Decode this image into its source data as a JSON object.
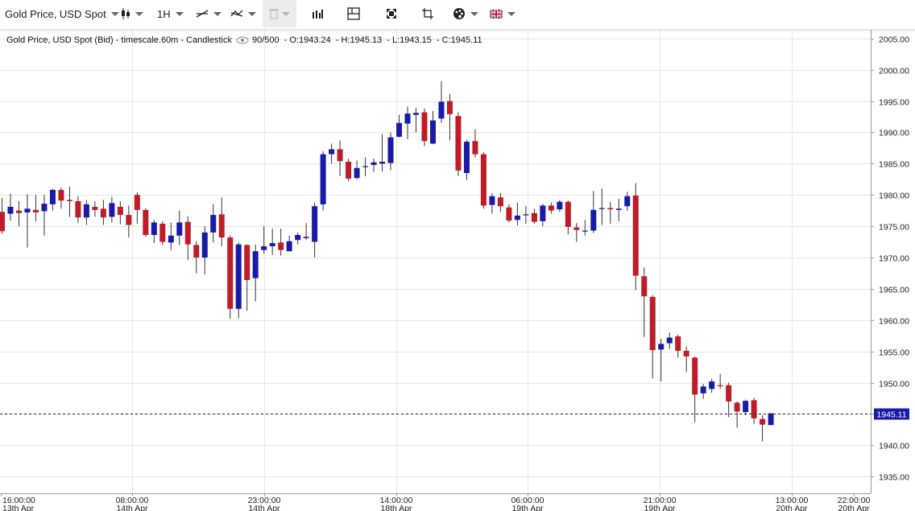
{
  "toolbar": {
    "instrument": "Gold Price, USD Spot",
    "timeframe": "1H",
    "icons": [
      "candlestick-icon",
      "line-tool-icon",
      "trend-tool-icon",
      "trash-icon",
      "volume-bars-icon",
      "layout-icon",
      "fullscreen-icon",
      "crop-icon",
      "palette-icon",
      "uk-flag-icon"
    ]
  },
  "legend": {
    "title": "Gold Price, USD Spot (Bid) - timescale.60m - Candlestick",
    "count": "90/500",
    "open": "O:1943.24",
    "high": "H:1945.13",
    "low": "L:1943.15",
    "close": "C:1945.11"
  },
  "colors": {
    "up": "#1a1aa8",
    "down": "#c01c28",
    "grid": "#e6e6e6",
    "price_tag": "#1a1aa8"
  },
  "current_price": "1945.11",
  "chart_data": {
    "type": "candlestick",
    "title": "Gold Price, USD Spot (Bid) - timescale.60m - Candlestick",
    "ylim": [
      1934,
      2006
    ],
    "y_ticks": [
      "2005.00",
      "2000.00",
      "1995.00",
      "1990.00",
      "1985.00",
      "1980.00",
      "1975.00",
      "1970.00",
      "1965.00",
      "1960.00",
      "1955.00",
      "1950.00",
      "1945.00",
      "1940.00",
      "1935.00"
    ],
    "x_ticks": [
      {
        "time": "16:00:00",
        "date": "13th Apr"
      },
      {
        "time": "08:00:00",
        "date": "14th Apr"
      },
      {
        "time": "23:00:00",
        "date": "14th Apr"
      },
      {
        "time": "14:00:00",
        "date": "18th Apr"
      },
      {
        "time": "06:00:00",
        "date": "19th Apr"
      },
      {
        "time": "21:00:00",
        "date": "19th Apr"
      },
      {
        "time": "13:00:00",
        "date": "20th Apr"
      },
      {
        "time": "22:00:00",
        "date": "20th Apr"
      }
    ],
    "current_price": 1945.11,
    "candles": [
      [
        1977.3,
        1974.2,
        1979.5,
        1973.8
      ],
      [
        1977.0,
        1978.1,
        1980.2,
        1975.9
      ],
      [
        1977.5,
        1977.1,
        1979.0,
        1975.0
      ],
      [
        1977.2,
        1977.8,
        1980.1,
        1971.6
      ],
      [
        1977.6,
        1977.2,
        1980.0,
        1975.8
      ],
      [
        1977.4,
        1978.6,
        1980.0,
        1973.5
      ],
      [
        1978.5,
        1980.8,
        1981.0,
        1977.5
      ],
      [
        1980.8,
        1979.1,
        1981.2,
        1977.8
      ],
      [
        1979.2,
        1979.0,
        1981.3,
        1976.5
      ],
      [
        1979.0,
        1976.4,
        1979.8,
        1975.5
      ],
      [
        1976.4,
        1978.5,
        1979.2,
        1975.2
      ],
      [
        1978.1,
        1977.6,
        1979.0,
        1976.5
      ],
      [
        1977.8,
        1976.4,
        1979.2,
        1975.2
      ],
      [
        1976.5,
        1978.7,
        1979.7,
        1975.6
      ],
      [
        1978.1,
        1976.8,
        1979.0,
        1975.3
      ],
      [
        1976.8,
        1975.2,
        1978.3,
        1973.2
      ],
      [
        1980.0,
        1977.6,
        1980.4,
        1975.4
      ],
      [
        1977.6,
        1973.6,
        1977.9,
        1973.3
      ],
      [
        1973.6,
        1975.6,
        1976.0,
        1972.3
      ],
      [
        1975.4,
        1972.5,
        1975.8,
        1972.0
      ],
      [
        1972.4,
        1973.5,
        1975.6,
        1971.2
      ],
      [
        1973.5,
        1975.6,
        1977.5,
        1972.0
      ],
      [
        1975.7,
        1972.1,
        1976.6,
        1969.6
      ],
      [
        1972.0,
        1970.0,
        1972.6,
        1967.5
      ],
      [
        1970.0,
        1974.0,
        1975.0,
        1967.3
      ],
      [
        1974.0,
        1976.8,
        1978.5,
        1972.4
      ],
      [
        1976.9,
        1973.2,
        1979.6,
        1971.8
      ],
      [
        1973.2,
        1961.8,
        1973.5,
        1960.2
      ],
      [
        1961.8,
        1972.1,
        1972.4,
        1960.3
      ],
      [
        1972.0,
        1966.4,
        1972.1,
        1961.5
      ],
      [
        1966.7,
        1971.0,
        1972.1,
        1963.0
      ],
      [
        1971.2,
        1971.8,
        1975.0,
        1970.6
      ],
      [
        1971.8,
        1972.3,
        1974.6,
        1970.4
      ],
      [
        1972.4,
        1971.2,
        1974.6,
        1970.3
      ],
      [
        1971.0,
        1972.6,
        1973.5,
        1971.0
      ],
      [
        1972.8,
        1973.6,
        1974.0,
        1972.1
      ],
      [
        1973.1,
        1973.3,
        1975.5,
        1972.8
      ],
      [
        1972.5,
        1978.2,
        1978.8,
        1970.0
      ],
      [
        1978.5,
        1986.5,
        1987.0,
        1977.5
      ],
      [
        1986.5,
        1987.3,
        1988.2,
        1985.0
      ],
      [
        1987.3,
        1985.4,
        1988.7,
        1983.0
      ],
      [
        1985.3,
        1982.6,
        1985.8,
        1982.2
      ],
      [
        1982.7,
        1984.3,
        1985.5,
        1982.5
      ],
      [
        1984.6,
        1984.6,
        1986.0,
        1983.0
      ],
      [
        1984.8,
        1985.2,
        1985.8,
        1983.7
      ],
      [
        1985.0,
        1985.3,
        1989.7,
        1983.8
      ],
      [
        1985.1,
        1989.2,
        1990.0,
        1984.0
      ],
      [
        1989.3,
        1991.5,
        1992.8,
        1989.2
      ],
      [
        1991.4,
        1993.0,
        1994.1,
        1988.9
      ],
      [
        1992.8,
        1993.1,
        1993.9,
        1990.0
      ],
      [
        1993.2,
        1988.6,
        1993.8,
        1987.8
      ],
      [
        1988.2,
        1991.9,
        1993.4,
        1988.1
      ],
      [
        1992.2,
        1994.9,
        1998.2,
        1991.5
      ],
      [
        1995.0,
        1992.9,
        1996.1,
        1988.7
      ],
      [
        1992.6,
        1983.9,
        1993.2,
        1983.0
      ],
      [
        1983.5,
        1988.5,
        1988.8,
        1982.4
      ],
      [
        1988.6,
        1986.5,
        1990.5,
        1986.0
      ],
      [
        1986.5,
        1978.3,
        1986.8,
        1977.8
      ],
      [
        1978.4,
        1979.8,
        1980.3,
        1977.0
      ],
      [
        1979.6,
        1978.2,
        1980.3,
        1977.3
      ],
      [
        1978.0,
        1975.9,
        1978.5,
        1975.6
      ],
      [
        1976.0,
        1976.7,
        1978.8,
        1975.1
      ],
      [
        1976.9,
        1976.9,
        1978.2,
        1975.4
      ],
      [
        1977.1,
        1975.7,
        1977.8,
        1975.4
      ],
      [
        1975.8,
        1978.3,
        1978.6,
        1975.0
      ],
      [
        1978.3,
        1977.5,
        1978.8,
        1977.0
      ],
      [
        1977.7,
        1978.9,
        1979.2,
        1977.3
      ],
      [
        1978.9,
        1974.9,
        1979.1,
        1973.7
      ],
      [
        1974.8,
        1974.4,
        1975.5,
        1972.5
      ],
      [
        1974.3,
        1974.3,
        1976.0,
        1973.5
      ],
      [
        1974.3,
        1977.6,
        1980.6,
        1973.9
      ],
      [
        1977.8,
        1977.9,
        1981.0,
        1975.2
      ],
      [
        1977.9,
        1977.7,
        1978.9,
        1975.4
      ],
      [
        1977.6,
        1977.8,
        1979.4,
        1975.8
      ],
      [
        1978.2,
        1979.8,
        1980.5,
        1977.5
      ],
      [
        1979.9,
        1967.1,
        1981.9,
        1964.8
      ],
      [
        1967.0,
        1963.8,
        1968.4,
        1957.3
      ],
      [
        1963.7,
        1955.2,
        1964.0,
        1950.7
      ],
      [
        1955.3,
        1956.2,
        1957.0,
        1950.2
      ],
      [
        1956.3,
        1957.2,
        1958.0,
        1955.4
      ],
      [
        1957.4,
        1955.1,
        1957.7,
        1954.0
      ],
      [
        1955.1,
        1954.2,
        1955.8,
        1951.7
      ],
      [
        1954.0,
        1948.1,
        1954.2,
        1943.7
      ],
      [
        1948.3,
        1949.4,
        1949.8,
        1947.4
      ],
      [
        1949.0,
        1950.2,
        1950.6,
        1948.4
      ],
      [
        1949.6,
        1949.5,
        1951.4,
        1949.0
      ],
      [
        1949.6,
        1947.0,
        1950.0,
        1944.5
      ],
      [
        1946.8,
        1945.4,
        1947.0,
        1942.8
      ],
      [
        1945.3,
        1947.1,
        1947.3,
        1944.8
      ],
      [
        1947.2,
        1944.3,
        1947.6,
        1943.4
      ],
      [
        1944.2,
        1943.3,
        1944.8,
        1940.6
      ],
      [
        1943.24,
        1945.11,
        1945.13,
        1943.15
      ]
    ]
  }
}
